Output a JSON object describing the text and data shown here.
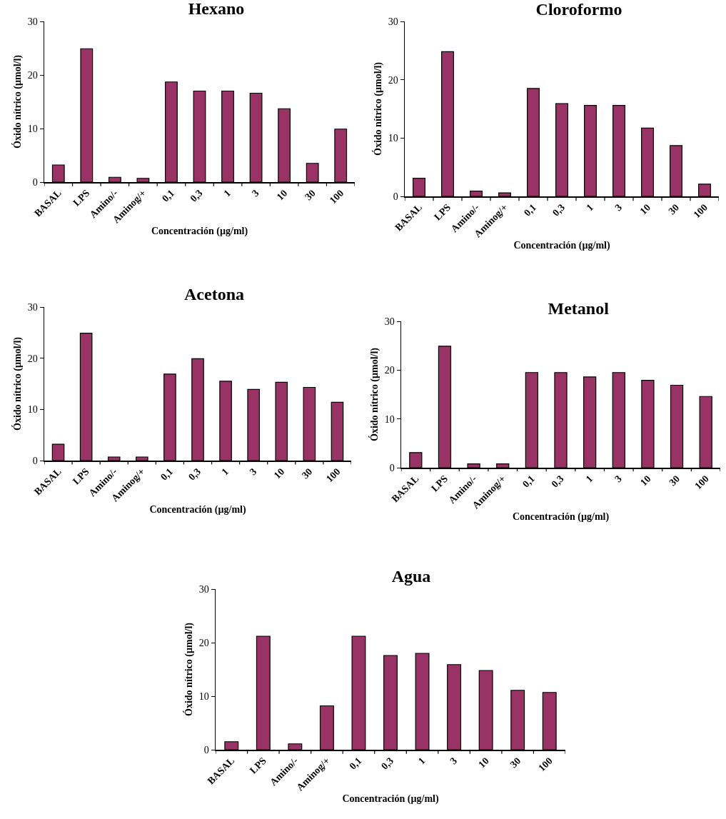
{
  "chart_data": [
    {
      "type": "bar",
      "title": "Hexano",
      "xlabel": "Concentración (µg/ml)",
      "ylabel": "Óxido nítrico (µmol/l)",
      "categories": [
        "BASAL",
        "LPS",
        "Amino/-",
        "Aminog/+",
        "0,1",
        "0,3",
        "1",
        "3",
        "10",
        "30",
        "100"
      ],
      "values": [
        3.2,
        24.9,
        0.9,
        0.7,
        18.7,
        17.0,
        17.0,
        16.6,
        13.7,
        3.5,
        9.9
      ],
      "color": "#993366",
      "ylim": [
        0,
        30
      ],
      "yticks": [
        0,
        10,
        20,
        30
      ],
      "grid": false,
      "legend": false
    },
    {
      "type": "bar",
      "title": "Cloroformo",
      "xlabel": "Concentración (µg/ml)",
      "ylabel": "Óxido nítrico (µmol/l)",
      "categories": [
        "BASAL",
        "LPS",
        "Amino/-",
        "Aminog/+",
        "0,1",
        "0,3",
        "1",
        "3",
        "10",
        "30",
        "100"
      ],
      "values": [
        3.1,
        24.8,
        0.9,
        0.6,
        18.5,
        15.9,
        15.6,
        15.6,
        11.7,
        8.7,
        2.1
      ],
      "color": "#993366",
      "ylim": [
        0,
        30
      ],
      "yticks": [
        0,
        10,
        20,
        30
      ],
      "grid": false,
      "legend": false
    },
    {
      "type": "bar",
      "title": "Acetona",
      "xlabel": "Concentración (µg/ml)",
      "ylabel": "Óxido nítrico (µmol/l)",
      "categories": [
        "BASAL",
        "LPS",
        "Amino/-",
        "Aminog/+",
        "0,1",
        "0,3",
        "1",
        "3",
        "10",
        "30",
        "100"
      ],
      "values": [
        3.2,
        24.9,
        0.7,
        0.7,
        16.9,
        19.9,
        15.5,
        13.9,
        15.3,
        14.3,
        11.4
      ],
      "color": "#993366",
      "ylim": [
        0,
        30
      ],
      "yticks": [
        0,
        10,
        20,
        30
      ],
      "grid": false,
      "legend": false
    },
    {
      "type": "bar",
      "title": "Metanol",
      "xlabel": "Concentración (µg/ml)",
      "ylabel": "Óxido nítrico (µmol/l)",
      "categories": [
        "BASAL",
        "LPS",
        "Amino/-",
        "Aminog/+",
        "0,1",
        "0,3",
        "1",
        "3",
        "10",
        "30",
        "100"
      ],
      "values": [
        3.1,
        24.9,
        0.8,
        0.8,
        19.5,
        19.5,
        18.6,
        19.5,
        17.9,
        16.9,
        14.6
      ],
      "color": "#993366",
      "ylim": [
        0,
        30
      ],
      "yticks": [
        0,
        10,
        20,
        30
      ],
      "grid": false,
      "legend": false
    },
    {
      "type": "bar",
      "title": "Agua",
      "xlabel": "Concentración (µg/ml)",
      "ylabel": "Óxido nítrico (µmol/l)",
      "categories": [
        "BASAL",
        "LPS",
        "Amino/-",
        "Aminog/+",
        "0,1",
        "0,3",
        "1",
        "3",
        "10",
        "30",
        "100"
      ],
      "values": [
        1.5,
        21.2,
        1.1,
        8.2,
        21.2,
        17.6,
        18.0,
        15.9,
        14.8,
        11.1,
        10.7
      ],
      "color": "#993366",
      "ylim": [
        0,
        30
      ],
      "yticks": [
        0,
        10,
        20,
        30
      ],
      "grid": false,
      "legend": false
    }
  ]
}
